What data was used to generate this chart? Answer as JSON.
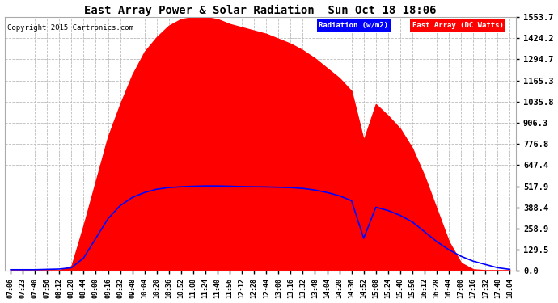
{
  "title": "East Array Power & Solar Radiation  Sun Oct 18 18:06",
  "copyright": "Copyright 2015 Cartronics.com",
  "legend_radiation": "Radiation (w/m2)",
  "legend_east": "East Array (DC Watts)",
  "yticks": [
    0.0,
    129.5,
    258.9,
    388.4,
    517.9,
    647.4,
    776.8,
    906.3,
    1035.8,
    1165.3,
    1294.7,
    1424.2,
    1553.7
  ],
  "ymax": 1553.7,
  "background_color": "#ffffff",
  "plot_bg": "#ffffff",
  "grid_color": "#aaaaaa",
  "red_color": "#ff0000",
  "blue_color": "#0000ff",
  "title_color": "#000000",
  "xtick_labels": [
    "07:06",
    "07:23",
    "07:40",
    "07:56",
    "08:12",
    "08:28",
    "08:44",
    "09:00",
    "09:16",
    "09:32",
    "09:48",
    "10:04",
    "10:20",
    "10:36",
    "10:52",
    "11:08",
    "11:24",
    "11:40",
    "11:56",
    "12:12",
    "12:28",
    "12:44",
    "13:00",
    "13:16",
    "13:32",
    "13:48",
    "14:04",
    "14:20",
    "14:36",
    "14:52",
    "15:08",
    "15:24",
    "15:40",
    "15:56",
    "16:12",
    "16:28",
    "16:44",
    "17:00",
    "17:16",
    "17:32",
    "17:48",
    "18:04"
  ],
  "red_vals": [
    5,
    5,
    5,
    5,
    5,
    30,
    280,
    550,
    820,
    1020,
    1200,
    1340,
    1430,
    1500,
    1540,
    1553,
    1553,
    1540,
    1510,
    1490,
    1470,
    1450,
    1420,
    1390,
    1350,
    1300,
    1240,
    1180,
    1100,
    800,
    1020,
    950,
    870,
    750,
    580,
    380,
    180,
    50,
    10,
    5,
    5,
    5
  ],
  "blue_vals": [
    8,
    8,
    8,
    10,
    12,
    20,
    80,
    200,
    320,
    400,
    450,
    480,
    500,
    510,
    515,
    518,
    520,
    520,
    518,
    516,
    515,
    514,
    512,
    510,
    505,
    495,
    480,
    460,
    430,
    200,
    390,
    370,
    340,
    300,
    240,
    180,
    130,
    90,
    60,
    40,
    20,
    10
  ]
}
